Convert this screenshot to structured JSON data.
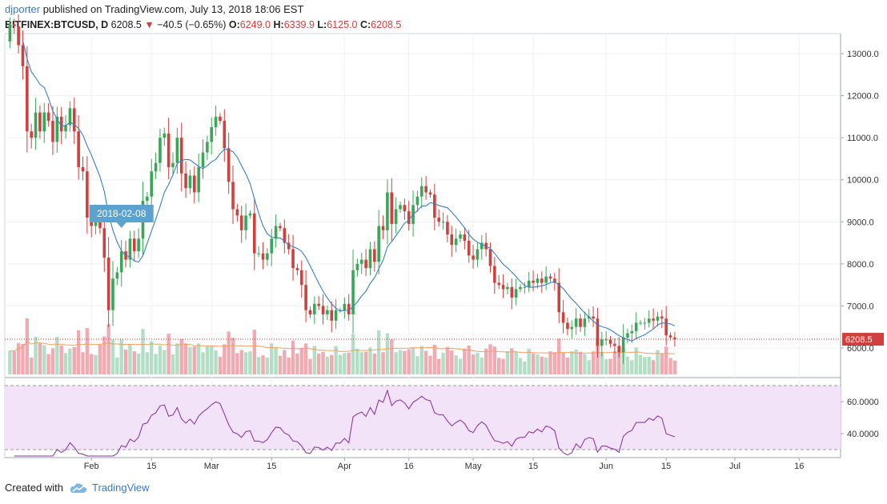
{
  "header": {
    "author": "djporter",
    "published_text": "published on TradingView.com, July 13, 2018 18:06 EST",
    "symbol": "BITFINEX:BTCUSD, D",
    "last": "6208.5",
    "change": "−40.5 (−0.65%)",
    "o_label": "O:",
    "o_value": "6249.0",
    "h_label": "H:",
    "h_value": "6339.9",
    "l_label": "L:",
    "l_value": "6125.0",
    "c_label": "C:",
    "c_value": "6208.5"
  },
  "footer": {
    "created_with": "Created with",
    "brand": "TradingView"
  },
  "colors": {
    "up": "#3aa757",
    "down": "#d0413d",
    "ma": "#3a7fc0",
    "rsi": "#8b3aa2",
    "rsi_band": "#f3e3f9",
    "vol_up": "#b3ddc4",
    "vol_down": "#f0aab1",
    "vol_ma": "#f0a060",
    "tooltip": "#5ba2cf",
    "last_price": "#d0413d"
  },
  "chart_data": [
    {
      "type": "candlestick",
      "title": "BITFINEX:BTCUSD, D",
      "y_axis_ticks": [
        6000,
        7000,
        8000,
        9000,
        10000,
        11000,
        12000,
        13000
      ],
      "y_tick_labels": [
        "6000.0",
        "7000.0",
        "8000.0",
        "9000.0",
        "10000.0",
        "11000.0",
        "12000.0",
        "13000.0"
      ],
      "ylim": [
        5400,
        13500
      ],
      "x_tick_labels": [
        "Feb",
        "15",
        "Mar",
        "15",
        "Apr",
        "16",
        "May",
        "15",
        "Jun",
        "15",
        "Jul",
        "16"
      ],
      "x_tick_dates": [
        "2018-02-01",
        "2018-02-15",
        "2018-03-01",
        "2018-03-15",
        "2018-04-01",
        "2018-04-16",
        "2018-05-01",
        "2018-05-15",
        "2018-06-01",
        "2018-06-15",
        "2018-07-01",
        "2018-07-16"
      ],
      "start_date": "2018-01-13",
      "last_price_label": "6208.5",
      "tooltip_date": "2018-02-08",
      "close": [
        13700,
        13650,
        13200,
        12700,
        11150,
        11000,
        11600,
        11150,
        11600,
        11400,
        10900,
        11500,
        11150,
        11300,
        11700,
        11150,
        10300,
        10200,
        9100,
        8900,
        9150,
        8850,
        8150,
        6900,
        7650,
        7800,
        8300,
        8100,
        8600,
        8300,
        8600,
        9500,
        9600,
        10200,
        10400,
        11000,
        11100,
        10300,
        10400,
        11000,
        10150,
        9800,
        10100,
        9700,
        10300,
        10650,
        10900,
        11250,
        11500,
        11400,
        10750,
        9950,
        9300,
        9150,
        8800,
        9150,
        9200,
        8250,
        8250,
        8100,
        8250,
        8600,
        8900,
        8850,
        8500,
        8350,
        7900,
        7850,
        7500,
        6900,
        6800,
        7050,
        7000,
        6800,
        6900,
        6650,
        6900,
        6900,
        7050,
        6800,
        7850,
        8000,
        8100,
        7900,
        8350,
        8050,
        8900,
        8800,
        9700,
        8950,
        9300,
        9400,
        9250,
        8950,
        9400,
        9600,
        9850,
        9700,
        9650,
        9100,
        9000,
        9000,
        8700,
        8450,
        8600,
        8700,
        8550,
        8200,
        8100,
        8350,
        8500,
        8350,
        7950,
        7550,
        7500,
        7400,
        7450,
        7200,
        7400,
        7450,
        7450,
        7600,
        7550,
        7650,
        7550,
        7700,
        7650,
        7550,
        6850,
        6600,
        6450,
        6500,
        6700,
        6500,
        6700,
        6750,
        6700,
        6050,
        6200,
        6200,
        6100,
        6050,
        5900,
        6250,
        6350,
        6400,
        6600,
        6600,
        6600,
        6700,
        6650,
        6750,
        6700,
        6300,
        6250,
        6208.5
      ],
      "ma_period": 9,
      "indicators": {
        "rsi": {
          "y_ticks": [
            40,
            60
          ],
          "y_tick_labels": [
            "40.0000",
            "60.0000"
          ],
          "upper_band": 70,
          "lower_band": 30,
          "ylim": [
            25,
            75
          ]
        },
        "volume_panel": "overlay"
      }
    }
  ]
}
